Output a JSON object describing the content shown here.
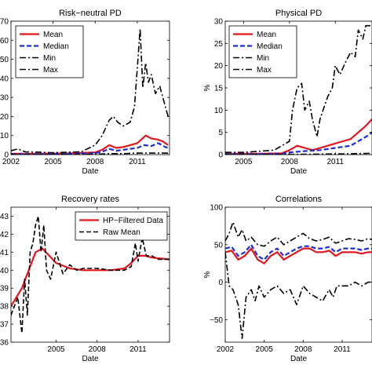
{
  "chart_data": [
    {
      "type": "line",
      "title": "Risk−neutral PD",
      "xlabel": "Date",
      "ylabel": "",
      "xlim": [
        2002,
        2013.3
      ],
      "ylim": [
        0,
        70
      ],
      "xticks": [
        2002,
        2005,
        2008,
        2011
      ],
      "yticks": [
        0,
        10,
        20,
        30,
        40,
        50,
        60,
        70
      ],
      "yticklabels": [
        "0",
        "10",
        "20",
        "30",
        "40",
        "50",
        "60",
        "70"
      ],
      "legend_position": "top-left",
      "series": [
        {
          "name": "Mean",
          "color": "#e8141c",
          "style": "solid",
          "x": [
            2002,
            2004,
            2006,
            2008,
            2008.5,
            2009,
            2009.5,
            2010,
            2010.5,
            2011,
            2011.3,
            2011.6,
            2012,
            2012.4,
            2012.8,
            2013.2
          ],
          "y": [
            0.5,
            0.5,
            0.6,
            1.2,
            2.5,
            5,
            3.5,
            4,
            5,
            6,
            8,
            10,
            8.5,
            8,
            7,
            5
          ]
        },
        {
          "name": "Median",
          "color": "#1a2fd6",
          "style": "dashed",
          "x": [
            2002,
            2004,
            2006,
            2008,
            2008.5,
            2009,
            2009.5,
            2010,
            2010.5,
            2011,
            2011.5,
            2012,
            2012.5,
            2013,
            2013.2
          ],
          "y": [
            0.3,
            0.3,
            0.4,
            0.8,
            1.5,
            3,
            2,
            2.5,
            3,
            3.5,
            5,
            4.5,
            6,
            4,
            3.5
          ]
        },
        {
          "name": "Min",
          "color": "#000000",
          "style": "dashdot",
          "x": [
            2002,
            2004,
            2006,
            2008,
            2009,
            2010,
            2011,
            2012,
            2013.2
          ],
          "y": [
            0.1,
            0.1,
            0.1,
            0.2,
            0.5,
            0.5,
            0.8,
            0.8,
            0.8
          ]
        },
        {
          "name": "Max",
          "color": "#000000",
          "style": "dashdot",
          "x": [
            2002,
            2002.5,
            2003,
            2005,
            2007,
            2008,
            2008.5,
            2009,
            2009.3,
            2009.6,
            2010,
            2010.5,
            2010.8,
            2011,
            2011.2,
            2011.4,
            2011.6,
            2011.8,
            2012,
            2012.3,
            2012.6,
            2012.9,
            2013.2
          ],
          "y": [
            2,
            3,
            1.5,
            1,
            1.5,
            5,
            10,
            18,
            20,
            17,
            15,
            17,
            25,
            45,
            66,
            35,
            48,
            38,
            42,
            32,
            36,
            28,
            20
          ]
        }
      ]
    },
    {
      "type": "line",
      "title": "Physical PD",
      "xlabel": "Date",
      "ylabel": "%",
      "xlim": [
        2003.8,
        2013.4
      ],
      "ylim": [
        0,
        30
      ],
      "xticks": [
        2005,
        2008,
        2011
      ],
      "yticks": [
        0,
        5,
        10,
        15,
        20,
        25,
        30
      ],
      "yticklabels": [
        "0",
        "5",
        "10",
        "15",
        "20",
        "25",
        "30"
      ],
      "legend_position": "top-left",
      "series": [
        {
          "name": "Mean",
          "color": "#e8141c",
          "style": "solid",
          "x": [
            2003.8,
            2006,
            2007.5,
            2008,
            2008.5,
            2009,
            2009.5,
            2010,
            2010.5,
            2011,
            2011.5,
            2012,
            2012.5,
            2013,
            2013.4
          ],
          "y": [
            0.2,
            0.2,
            0.3,
            1,
            2,
            1.5,
            1,
            1.5,
            2,
            2.5,
            3,
            3.5,
            5,
            6.5,
            8
          ]
        },
        {
          "name": "Median",
          "color": "#1a2fd6",
          "style": "dashed",
          "x": [
            2003.8,
            2006,
            2007.5,
            2008,
            2009,
            2010,
            2011,
            2012,
            2012.5,
            2013,
            2013.4
          ],
          "y": [
            0.1,
            0.1,
            0.2,
            0.5,
            0.8,
            1,
            1.5,
            2,
            3,
            4,
            5
          ]
        },
        {
          "name": "Min",
          "color": "#000000",
          "style": "dashdot",
          "x": [
            2003.8,
            2006,
            2008,
            2010,
            2012,
            2013.4
          ],
          "y": [
            0.05,
            0.05,
            0.05,
            0.1,
            0.2,
            0.3
          ]
        },
        {
          "name": "Max",
          "color": "#000000",
          "style": "dashdot",
          "x": [
            2003.8,
            2005,
            2007,
            2007.5,
            2008,
            2008.2,
            2008.5,
            2008.8,
            2009,
            2009.3,
            2009.5,
            2009.8,
            2010,
            2010.5,
            2010.8,
            2011,
            2011.3,
            2011.7,
            2012,
            2012.3,
            2012.5,
            2012.8,
            2013,
            2013.4
          ],
          "y": [
            0.5,
            0.5,
            1,
            2,
            3,
            10,
            15,
            16,
            10,
            12,
            8,
            4,
            8,
            13,
            15,
            20,
            18,
            21,
            23,
            22,
            28,
            26,
            29,
            29
          ]
        }
      ]
    },
    {
      "type": "line",
      "title": "Recovery rates",
      "xlabel": "Date",
      "ylabel": "",
      "xlim": [
        2001.7,
        2013.3
      ],
      "ylim": [
        36,
        43.5
      ],
      "xticks": [
        2005,
        2008,
        2011
      ],
      "yticks": [
        36,
        37,
        38,
        39,
        40,
        41,
        42,
        43
      ],
      "yticklabels": [
        "36",
        "37",
        "38",
        "39",
        "40",
        "41",
        "42",
        "43"
      ],
      "legend_position": "top-right",
      "series": [
        {
          "name": "HP−Filtered Data",
          "color": "#e8141c",
          "style": "solid",
          "x": [
            2001.7,
            2002.5,
            2003,
            2003.5,
            2004,
            2004.5,
            2005,
            2006,
            2007,
            2008,
            2009,
            2010,
            2010.5,
            2011,
            2011.5,
            2012,
            2013.3
          ],
          "y": [
            38,
            39,
            40,
            41,
            41.2,
            40.8,
            40.4,
            40.1,
            40,
            40,
            40,
            40.1,
            40.4,
            40.8,
            40.8,
            40.7,
            40.6
          ]
        },
        {
          "name": "Raw Mean",
          "color": "#000000",
          "style": "dashed",
          "x": [
            2001.7,
            2002.2,
            2002.5,
            2002.7,
            2002.9,
            2003.1,
            2003.3,
            2003.5,
            2003.7,
            2003.9,
            2004.1,
            2004.3,
            2004.6,
            2005,
            2005.5,
            2006,
            2006.5,
            2007,
            2008,
            2009,
            2010,
            2010.5,
            2010.8,
            2011,
            2011.3,
            2011.6,
            2012,
            2012.5,
            2013.3
          ],
          "y": [
            37.5,
            38.5,
            36.5,
            39.5,
            37.5,
            41,
            41.5,
            42.5,
            43,
            41,
            42.5,
            40,
            39.5,
            41,
            39.8,
            40.3,
            40,
            40.1,
            40.1,
            40,
            40,
            40.2,
            41.5,
            40.5,
            41.8,
            40.8,
            40.8,
            40.6,
            40.6
          ]
        }
      ]
    },
    {
      "type": "line",
      "title": "Correlations",
      "xlabel": "Date",
      "ylabel": "%",
      "xlim": [
        2002,
        2013.3
      ],
      "ylim": [
        -80,
        100
      ],
      "xticks": [
        2002,
        2005,
        2008,
        2011
      ],
      "yticks": [
        -50,
        0,
        50,
        100
      ],
      "yticklabels": [
        "−50",
        "0",
        "50",
        "100"
      ],
      "legend_position": "none",
      "series": [
        {
          "name": "",
          "color": "#e8141c",
          "style": "solid",
          "x": [
            2002,
            2002.5,
            2003,
            2003.5,
            2004,
            2004.5,
            2005,
            2005.5,
            2006,
            2006.5,
            2007,
            2007.5,
            2008,
            2008.5,
            2009,
            2009.5,
            2010,
            2010.5,
            2011,
            2011.5,
            2012,
            2012.5,
            2013,
            2013.3
          ],
          "y": [
            40,
            42,
            30,
            35,
            45,
            30,
            25,
            35,
            40,
            30,
            35,
            40,
            45,
            45,
            40,
            40,
            42,
            35,
            40,
            40,
            40,
            38,
            40,
            40
          ]
        },
        {
          "name": "",
          "color": "#1a2fd6",
          "style": "dashed",
          "x": [
            2002,
            2002.5,
            2003,
            2003.5,
            2004,
            2004.5,
            2005,
            2005.5,
            2006,
            2006.5,
            2007,
            2007.5,
            2008,
            2008.5,
            2009,
            2009.5,
            2010,
            2010.5,
            2011,
            2011.5,
            2012,
            2012.5,
            2013,
            2013.3
          ],
          "y": [
            45,
            47,
            35,
            40,
            50,
            35,
            30,
            40,
            45,
            35,
            40,
            45,
            48,
            48,
            45,
            45,
            47,
            40,
            45,
            45,
            45,
            43,
            45,
            45
          ]
        },
        {
          "name": "",
          "color": "#000000",
          "style": "dashdot",
          "x": [
            2002,
            2002.3,
            2002.6,
            2003,
            2003.3,
            2003.6,
            2004,
            2004.5,
            2005,
            2005.5,
            2006,
            2006.5,
            2007,
            2007.5,
            2008,
            2008.5,
            2009,
            2009.5,
            2010,
            2010.5,
            2011,
            2011.5,
            2012,
            2012.5,
            2013,
            2013.3
          ],
          "y": [
            55,
            65,
            80,
            60,
            70,
            55,
            60,
            50,
            48,
            55,
            60,
            50,
            55,
            60,
            65,
            58,
            55,
            57,
            60,
            52,
            55,
            58,
            57,
            55,
            58,
            57
          ]
        },
        {
          "name": "",
          "color": "#000000",
          "style": "dashdot",
          "x": [
            2002,
            2002.3,
            2002.6,
            2003,
            2003.3,
            2003.6,
            2004,
            2004.3,
            2004.6,
            2005,
            2005.5,
            2006,
            2006.5,
            2007,
            2007.5,
            2008,
            2008.5,
            2009,
            2009.5,
            2010,
            2010.3,
            2010.6,
            2011,
            2011.5,
            2012,
            2012.5,
            2013,
            2013.3
          ],
          "y": [
            40,
            -5,
            -10,
            -30,
            -75,
            -20,
            -10,
            -25,
            -5,
            -20,
            -10,
            -5,
            -15,
            -10,
            -30,
            -5,
            -15,
            -20,
            -25,
            -10,
            -20,
            -5,
            -5,
            -5,
            0,
            -5,
            0,
            0
          ]
        }
      ]
    }
  ]
}
